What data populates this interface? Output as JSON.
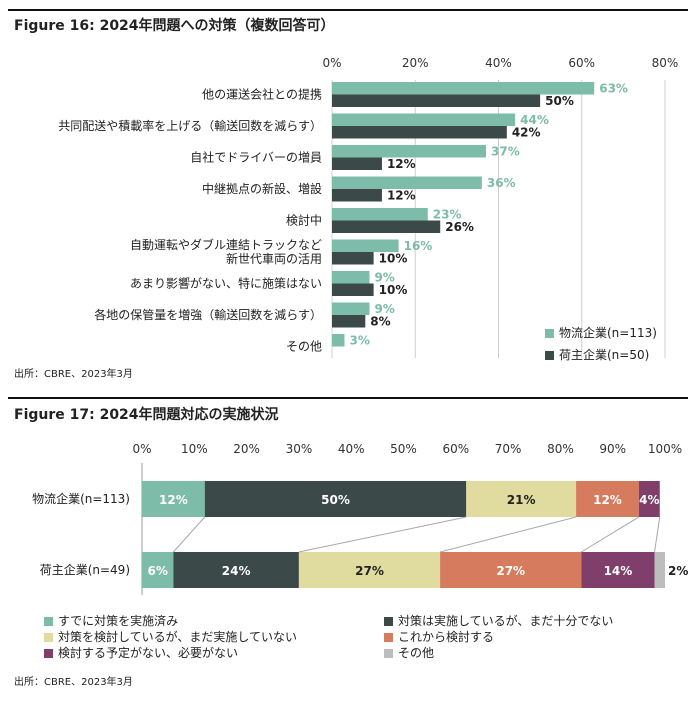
{
  "fig16": {
    "title": "Figure 16: 2024年問題への対策（複数回答可）",
    "source": "出所：CBRE、2023年3月"
  },
  "fig17": {
    "title": "Figure 17: 2024年問題対応の実施状況",
    "source": "出所：CBRE、2023年3月"
  },
  "chart_data": [
    {
      "type": "bar",
      "orientation": "horizontal",
      "title": "Figure 16: 2024年問題への対策（複数回答可）",
      "categories": [
        [
          "他の運送会社との提携"
        ],
        [
          "共同配送や積載率を上げる（輸送回数を減らす）"
        ],
        [
          "自社でドライバーの増員"
        ],
        [
          "中継拠点の新設、増設"
        ],
        [
          "検討中"
        ],
        [
          "自動運転やダブル連結トラックなど",
          "新世代車両の活用"
        ],
        [
          "あまり影響がない、特に施策はない"
        ],
        [
          "各地の保管量を増強（輸送回数を減らす）"
        ],
        [
          "その他"
        ]
      ],
      "xlim": [
        0,
        80
      ],
      "ticks": [
        0,
        20,
        40,
        60,
        80
      ],
      "tick_labels": [
        "0%",
        "20%",
        "40%",
        "60%",
        "80%"
      ],
      "grid": true,
      "legend_position": "bottom-right",
      "series": [
        {
          "name": "物流企業(n=113)",
          "color": "#7dbca9",
          "values": [
            63,
            44,
            37,
            36,
            23,
            16,
            9,
            9,
            3
          ],
          "labels": [
            "63%",
            "44%",
            "37%",
            "36%",
            "23%",
            "16%",
            "9%",
            "9%",
            "3%"
          ]
        },
        {
          "name": "荷主企業(n=50)",
          "color": "#3b4a48",
          "values": [
            50,
            42,
            12,
            12,
            26,
            10,
            10,
            8,
            null
          ],
          "labels": [
            "50%",
            "42%",
            "12%",
            "12%",
            "26%",
            "10%",
            "10%",
            "8%",
            null
          ]
        }
      ]
    },
    {
      "type": "bar",
      "orientation": "horizontal",
      "stacked": true,
      "title": "Figure 17: 2024年問題対応の実施状況",
      "categories": [
        "物流企業(n=113)",
        "荷主企業(n=49)"
      ],
      "xlim": [
        0,
        100
      ],
      "ticks": [
        0,
        10,
        20,
        30,
        40,
        50,
        60,
        70,
        80,
        90,
        100
      ],
      "tick_labels": [
        "0%",
        "10%",
        "20%",
        "30%",
        "40%",
        "50%",
        "60%",
        "70%",
        "80%",
        "90%",
        "100%"
      ],
      "legend_position": "bottom",
      "series": [
        {
          "name": "すでに対策を実施済み",
          "color": "#7dbca9",
          "text_color": "#ffffff",
          "values": [
            12,
            6
          ],
          "labels": [
            "12%",
            "6%"
          ]
        },
        {
          "name": "対策は実施しているが、まだ十分でない",
          "color": "#3b4a48",
          "text_color": "#ffffff",
          "values": [
            50,
            24
          ],
          "labels": [
            "50%",
            "24%"
          ]
        },
        {
          "name": "対策を検討しているが、まだ実施していない",
          "color": "#e0dc9f",
          "text_color": "#222222",
          "values": [
            21,
            27
          ],
          "labels": [
            "21%",
            "27%"
          ]
        },
        {
          "name": "これから検討する",
          "color": "#d77b5e",
          "text_color": "#ffffff",
          "values": [
            12,
            27
          ],
          "labels": [
            "12%",
            "27%"
          ]
        },
        {
          "name": "検討する予定がない、必要がない",
          "color": "#7f3f6a",
          "text_color": "#ffffff",
          "values": [
            4,
            14
          ],
          "labels": [
            "4%",
            "14%"
          ]
        },
        {
          "name": "その他",
          "color": "#bdbdbd",
          "text_color": "#222222",
          "values": [
            0,
            2
          ],
          "labels": [
            null,
            "2%"
          ]
        }
      ]
    }
  ]
}
